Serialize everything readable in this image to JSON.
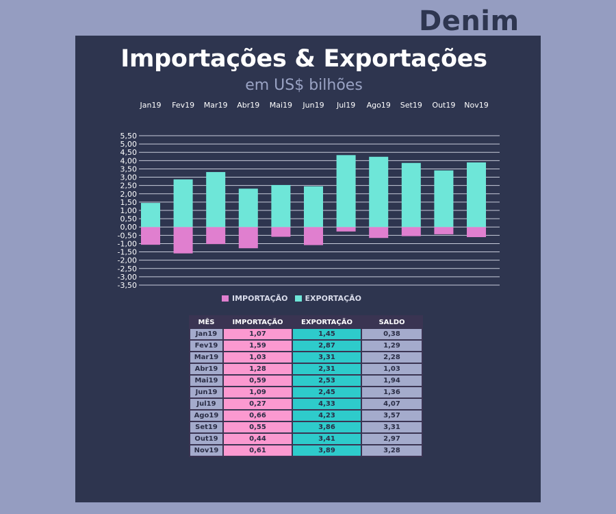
{
  "brand": "Denim",
  "colors": {
    "background": "#959dc1",
    "panel": "#2e354f",
    "importacao": "#e07fcf",
    "exportacao": "#6ee6d8",
    "table_importacao": "#fb99d0",
    "table_exportacao": "#2ecbcb",
    "table_neutral": "#a4abcc"
  },
  "chart_data": {
    "type": "bar",
    "title": "Importações & Exportações",
    "subtitle": "em US$ bilhões",
    "categories": [
      "Jan19",
      "Fev19",
      "Mar19",
      "Abr19",
      "Mai19",
      "Jun19",
      "Jul19",
      "Ago19",
      "Set19",
      "Out19",
      "Nov19"
    ],
    "series": [
      {
        "name": "IMPORTAÇÃO",
        "values": [
          -1.07,
          -1.59,
          -1.03,
          -1.28,
          -0.59,
          -1.09,
          -0.27,
          -0.66,
          -0.55,
          -0.44,
          -0.61
        ]
      },
      {
        "name": "EXPORTAÇÃO",
        "values": [
          1.45,
          2.87,
          3.31,
          2.31,
          2.53,
          2.45,
          4.33,
          4.23,
          3.86,
          3.41,
          3.89
        ]
      }
    ],
    "ylim": [
      -3.5,
      5.5
    ],
    "yticks": [
      "5,50",
      "5,00",
      "4,50",
      "4,00",
      "3,50",
      "3,00",
      "2,50",
      "2,00",
      "1,50",
      "1,00",
      "0,50",
      "0,00",
      "-0,50",
      "-1,00",
      "-1,50",
      "-2,00",
      "-2,50",
      "-3,00",
      "-3,50"
    ],
    "grid": true,
    "legend_position": "bottom"
  },
  "table": {
    "headers": [
      "MÊS",
      "IMPORTAÇÃO",
      "EXPORTAÇÃO",
      "SALDO"
    ],
    "rows": [
      [
        "Jan19",
        "1,07",
        "1,45",
        "0,38"
      ],
      [
        "Fev19",
        "1,59",
        "2,87",
        "1,29"
      ],
      [
        "Mar19",
        "1,03",
        "3,31",
        "2,28"
      ],
      [
        "Abr19",
        "1,28",
        "2,31",
        "1,03"
      ],
      [
        "Mai19",
        "0,59",
        "2,53",
        "1,94"
      ],
      [
        "Jun19",
        "1,09",
        "2,45",
        "1,36"
      ],
      [
        "Jul19",
        "0,27",
        "4,33",
        "4,07"
      ],
      [
        "Ago19",
        "0,66",
        "4,23",
        "3,57"
      ],
      [
        "Set19",
        "0,55",
        "3,86",
        "3,31"
      ],
      [
        "Out19",
        "0,44",
        "3,41",
        "2,97"
      ],
      [
        "Nov19",
        "0,61",
        "3,89",
        "3,28"
      ]
    ]
  }
}
